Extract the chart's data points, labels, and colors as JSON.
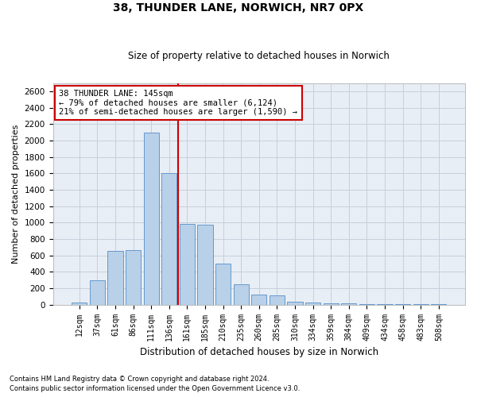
{
  "title1": "38, THUNDER LANE, NORWICH, NR7 0PX",
  "title2": "Size of property relative to detached houses in Norwich",
  "xlabel": "Distribution of detached houses by size in Norwich",
  "ylabel": "Number of detached properties",
  "categories": [
    "12sqm",
    "37sqm",
    "61sqm",
    "86sqm",
    "111sqm",
    "136sqm",
    "161sqm",
    "185sqm",
    "210sqm",
    "235sqm",
    "260sqm",
    "285sqm",
    "310sqm",
    "334sqm",
    "359sqm",
    "384sqm",
    "409sqm",
    "434sqm",
    "458sqm",
    "483sqm",
    "508sqm"
  ],
  "values": [
    25,
    300,
    650,
    660,
    2100,
    1600,
    980,
    975,
    500,
    248,
    125,
    115,
    40,
    30,
    15,
    12,
    8,
    5,
    3,
    10,
    5
  ],
  "bar_color": "#b8d0e8",
  "bar_edge_color": "#6699cc",
  "vline_index": 6,
  "vline_color": "#cc0000",
  "annotation_line1": "38 THUNDER LANE: 145sqm",
  "annotation_line2": "← 79% of detached houses are smaller (6,124)",
  "annotation_line3": "21% of semi-detached houses are larger (1,590) →",
  "annotation_box_color": "#cc0000",
  "ylim_max": 2700,
  "yticks": [
    0,
    200,
    400,
    600,
    800,
    1000,
    1200,
    1400,
    1600,
    1800,
    2000,
    2200,
    2400,
    2600
  ],
  "footnote1": "Contains HM Land Registry data © Crown copyright and database right 2024.",
  "footnote2": "Contains public sector information licensed under the Open Government Licence v3.0.",
  "bg_color": "#ffffff",
  "ax_bg_color": "#e8eef5",
  "grid_color": "#c5d0dc"
}
